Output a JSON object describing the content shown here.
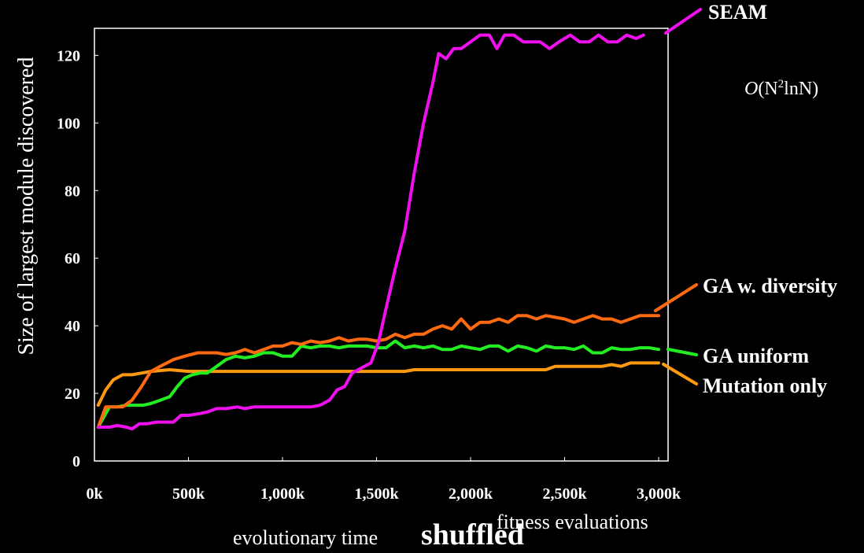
{
  "chart_data": {
    "type": "line",
    "ylabel": "Size of largest module discovered",
    "xlabel_main": "evolutionary time",
    "xlabel_overlay": "shuffled",
    "xlabel_secondary": "fitness evaluations",
    "annotation": {
      "italic": "O",
      "text": "(N",
      "sup": "2",
      "tail": "lnN)"
    },
    "xlim": [
      0,
      3050
    ],
    "ylim": [
      0,
      128
    ],
    "x_ticks": [
      {
        "value": 0,
        "label": "0k"
      },
      {
        "value": 500,
        "label": "500k"
      },
      {
        "value": 1000,
        "label": "1,000k"
      },
      {
        "value": 1500,
        "label": "1,500k"
      },
      {
        "value": 2000,
        "label": "2,000k"
      },
      {
        "value": 2500,
        "label": "2,500k"
      },
      {
        "value": 3000,
        "label": "3,000k"
      }
    ],
    "y_ticks": [
      {
        "value": 0,
        "label": "0"
      },
      {
        "value": 20,
        "label": "20"
      },
      {
        "value": 40,
        "label": "40"
      },
      {
        "value": 60,
        "label": "60"
      },
      {
        "value": 80,
        "label": "80"
      },
      {
        "value": 100,
        "label": "100"
      },
      {
        "value": 120,
        "label": "120"
      }
    ],
    "grid": false,
    "legend": "labels at right end of lines",
    "series": [
      {
        "name": "SEAM",
        "color": "#ee11ee",
        "points": [
          [
            20,
            10
          ],
          [
            80,
            10
          ],
          [
            120,
            10.5
          ],
          [
            170,
            10
          ],
          [
            200,
            9.5
          ],
          [
            240,
            11
          ],
          [
            280,
            11
          ],
          [
            330,
            11.5
          ],
          [
            370,
            11.5
          ],
          [
            420,
            11.5
          ],
          [
            460,
            13.5
          ],
          [
            500,
            13.5
          ],
          [
            560,
            14
          ],
          [
            600,
            14.5
          ],
          [
            650,
            15.5
          ],
          [
            700,
            15.5
          ],
          [
            760,
            16
          ],
          [
            800,
            15.5
          ],
          [
            850,
            16
          ],
          [
            900,
            16
          ],
          [
            950,
            16
          ],
          [
            1000,
            16
          ],
          [
            1050,
            16
          ],
          [
            1100,
            16
          ],
          [
            1150,
            16
          ],
          [
            1200,
            16.5
          ],
          [
            1250,
            18
          ],
          [
            1290,
            21
          ],
          [
            1330,
            22
          ],
          [
            1370,
            26
          ],
          [
            1420,
            27.5
          ],
          [
            1470,
            29
          ],
          [
            1510,
            35
          ],
          [
            1550,
            45
          ],
          [
            1600,
            57
          ],
          [
            1650,
            68
          ],
          [
            1700,
            85
          ],
          [
            1750,
            100
          ],
          [
            1800,
            112
          ],
          [
            1830,
            120.5
          ],
          [
            1870,
            119
          ],
          [
            1910,
            122
          ],
          [
            1950,
            122
          ],
          [
            2000,
            124
          ],
          [
            2050,
            126
          ],
          [
            2100,
            126
          ],
          [
            2140,
            122
          ],
          [
            2180,
            126
          ],
          [
            2230,
            126
          ],
          [
            2280,
            124
          ],
          [
            2320,
            124
          ],
          [
            2370,
            124
          ],
          [
            2420,
            122
          ],
          [
            2470,
            124
          ],
          [
            2530,
            126
          ],
          [
            2580,
            124
          ],
          [
            2630,
            124
          ],
          [
            2680,
            126
          ],
          [
            2730,
            124
          ],
          [
            2780,
            124
          ],
          [
            2830,
            126
          ],
          [
            2880,
            125
          ],
          [
            2920,
            126
          ]
        ]
      },
      {
        "name": "GA w. diversity",
        "color": "#ff6a10",
        "points": [
          [
            20,
            10
          ],
          [
            60,
            16
          ],
          [
            100,
            16
          ],
          [
            150,
            16
          ],
          [
            200,
            18
          ],
          [
            250,
            22
          ],
          [
            300,
            26.5
          ],
          [
            350,
            28
          ],
          [
            420,
            30
          ],
          [
            480,
            31
          ],
          [
            550,
            32
          ],
          [
            600,
            32
          ],
          [
            650,
            32
          ],
          [
            700,
            31.5
          ],
          [
            750,
            32
          ],
          [
            800,
            33
          ],
          [
            850,
            32
          ],
          [
            900,
            33
          ],
          [
            950,
            34
          ],
          [
            1000,
            34
          ],
          [
            1050,
            35
          ],
          [
            1100,
            34.5
          ],
          [
            1150,
            35.5
          ],
          [
            1200,
            35
          ],
          [
            1250,
            35.5
          ],
          [
            1300,
            36.5
          ],
          [
            1350,
            35.5
          ],
          [
            1400,
            36
          ],
          [
            1450,
            36
          ],
          [
            1500,
            35.5
          ],
          [
            1550,
            36
          ],
          [
            1600,
            37.5
          ],
          [
            1650,
            36.5
          ],
          [
            1700,
            37.5
          ],
          [
            1750,
            37.5
          ],
          [
            1800,
            39
          ],
          [
            1850,
            40
          ],
          [
            1900,
            39
          ],
          [
            1950,
            42
          ],
          [
            2000,
            39
          ],
          [
            2050,
            41
          ],
          [
            2100,
            41
          ],
          [
            2150,
            42
          ],
          [
            2200,
            41
          ],
          [
            2250,
            43
          ],
          [
            2300,
            43
          ],
          [
            2350,
            42
          ],
          [
            2400,
            43
          ],
          [
            2450,
            42.5
          ],
          [
            2500,
            42
          ],
          [
            2550,
            41
          ],
          [
            2600,
            42
          ],
          [
            2650,
            43
          ],
          [
            2700,
            42
          ],
          [
            2750,
            42
          ],
          [
            2800,
            41
          ],
          [
            2850,
            42
          ],
          [
            2900,
            43
          ],
          [
            2950,
            43
          ],
          [
            3000,
            43
          ]
        ]
      },
      {
        "name": "GA uniform",
        "color": "#22ee22",
        "points": [
          [
            20,
            10
          ],
          [
            80,
            16
          ],
          [
            120,
            16
          ],
          [
            170,
            16.5
          ],
          [
            220,
            16.5
          ],
          [
            260,
            16.5
          ],
          [
            300,
            17
          ],
          [
            350,
            18
          ],
          [
            400,
            19
          ],
          [
            440,
            22
          ],
          [
            480,
            24.5
          ],
          [
            520,
            25.5
          ],
          [
            560,
            26
          ],
          [
            600,
            26
          ],
          [
            650,
            28
          ],
          [
            700,
            30
          ],
          [
            750,
            31
          ],
          [
            800,
            30.5
          ],
          [
            850,
            31
          ],
          [
            900,
            32
          ],
          [
            950,
            32
          ],
          [
            1000,
            31
          ],
          [
            1050,
            31
          ],
          [
            1100,
            34
          ],
          [
            1150,
            33.5
          ],
          [
            1200,
            34
          ],
          [
            1250,
            34
          ],
          [
            1300,
            33.5
          ],
          [
            1350,
            34
          ],
          [
            1400,
            34
          ],
          [
            1450,
            34
          ],
          [
            1500,
            33.5
          ],
          [
            1550,
            33.5
          ],
          [
            1600,
            35.5
          ],
          [
            1650,
            33.5
          ],
          [
            1700,
            34
          ],
          [
            1750,
            33.5
          ],
          [
            1800,
            34
          ],
          [
            1850,
            33
          ],
          [
            1900,
            33
          ],
          [
            1950,
            34
          ],
          [
            2000,
            33.5
          ],
          [
            2050,
            33
          ],
          [
            2100,
            34
          ],
          [
            2150,
            34
          ],
          [
            2200,
            32.5
          ],
          [
            2250,
            34
          ],
          [
            2300,
            33.5
          ],
          [
            2350,
            32.5
          ],
          [
            2400,
            34
          ],
          [
            2450,
            33.5
          ],
          [
            2500,
            33.5
          ],
          [
            2550,
            33
          ],
          [
            2600,
            34
          ],
          [
            2650,
            32
          ],
          [
            2700,
            32
          ],
          [
            2750,
            33.5
          ],
          [
            2800,
            33
          ],
          [
            2850,
            33
          ],
          [
            2900,
            33.5
          ],
          [
            2950,
            33.5
          ],
          [
            3000,
            33
          ]
        ]
      },
      {
        "name": "Mutation only",
        "color": "#ff9a10",
        "points": [
          [
            20,
            16.5
          ],
          [
            60,
            21
          ],
          [
            100,
            24
          ],
          [
            150,
            25.5
          ],
          [
            200,
            25.5
          ],
          [
            250,
            26
          ],
          [
            300,
            26.5
          ],
          [
            400,
            27
          ],
          [
            500,
            26.5
          ],
          [
            600,
            26.5
          ],
          [
            700,
            26.5
          ],
          [
            800,
            26.5
          ],
          [
            900,
            26.5
          ],
          [
            1000,
            26.5
          ],
          [
            1100,
            26.5
          ],
          [
            1200,
            26.5
          ],
          [
            1300,
            26.5
          ],
          [
            1400,
            26.5
          ],
          [
            1500,
            26.5
          ],
          [
            1600,
            26.5
          ],
          [
            1650,
            26.5
          ],
          [
            1700,
            27
          ],
          [
            1800,
            27
          ],
          [
            1900,
            27
          ],
          [
            2000,
            27
          ],
          [
            2100,
            27
          ],
          [
            2200,
            27
          ],
          [
            2300,
            27
          ],
          [
            2400,
            27
          ],
          [
            2450,
            28
          ],
          [
            2500,
            28
          ],
          [
            2550,
            28
          ],
          [
            2600,
            28
          ],
          [
            2650,
            28
          ],
          [
            2700,
            28
          ],
          [
            2750,
            28.5
          ],
          [
            2800,
            28
          ],
          [
            2850,
            29
          ],
          [
            2900,
            29
          ],
          [
            2950,
            29
          ],
          [
            3000,
            29
          ]
        ]
      }
    ]
  }
}
